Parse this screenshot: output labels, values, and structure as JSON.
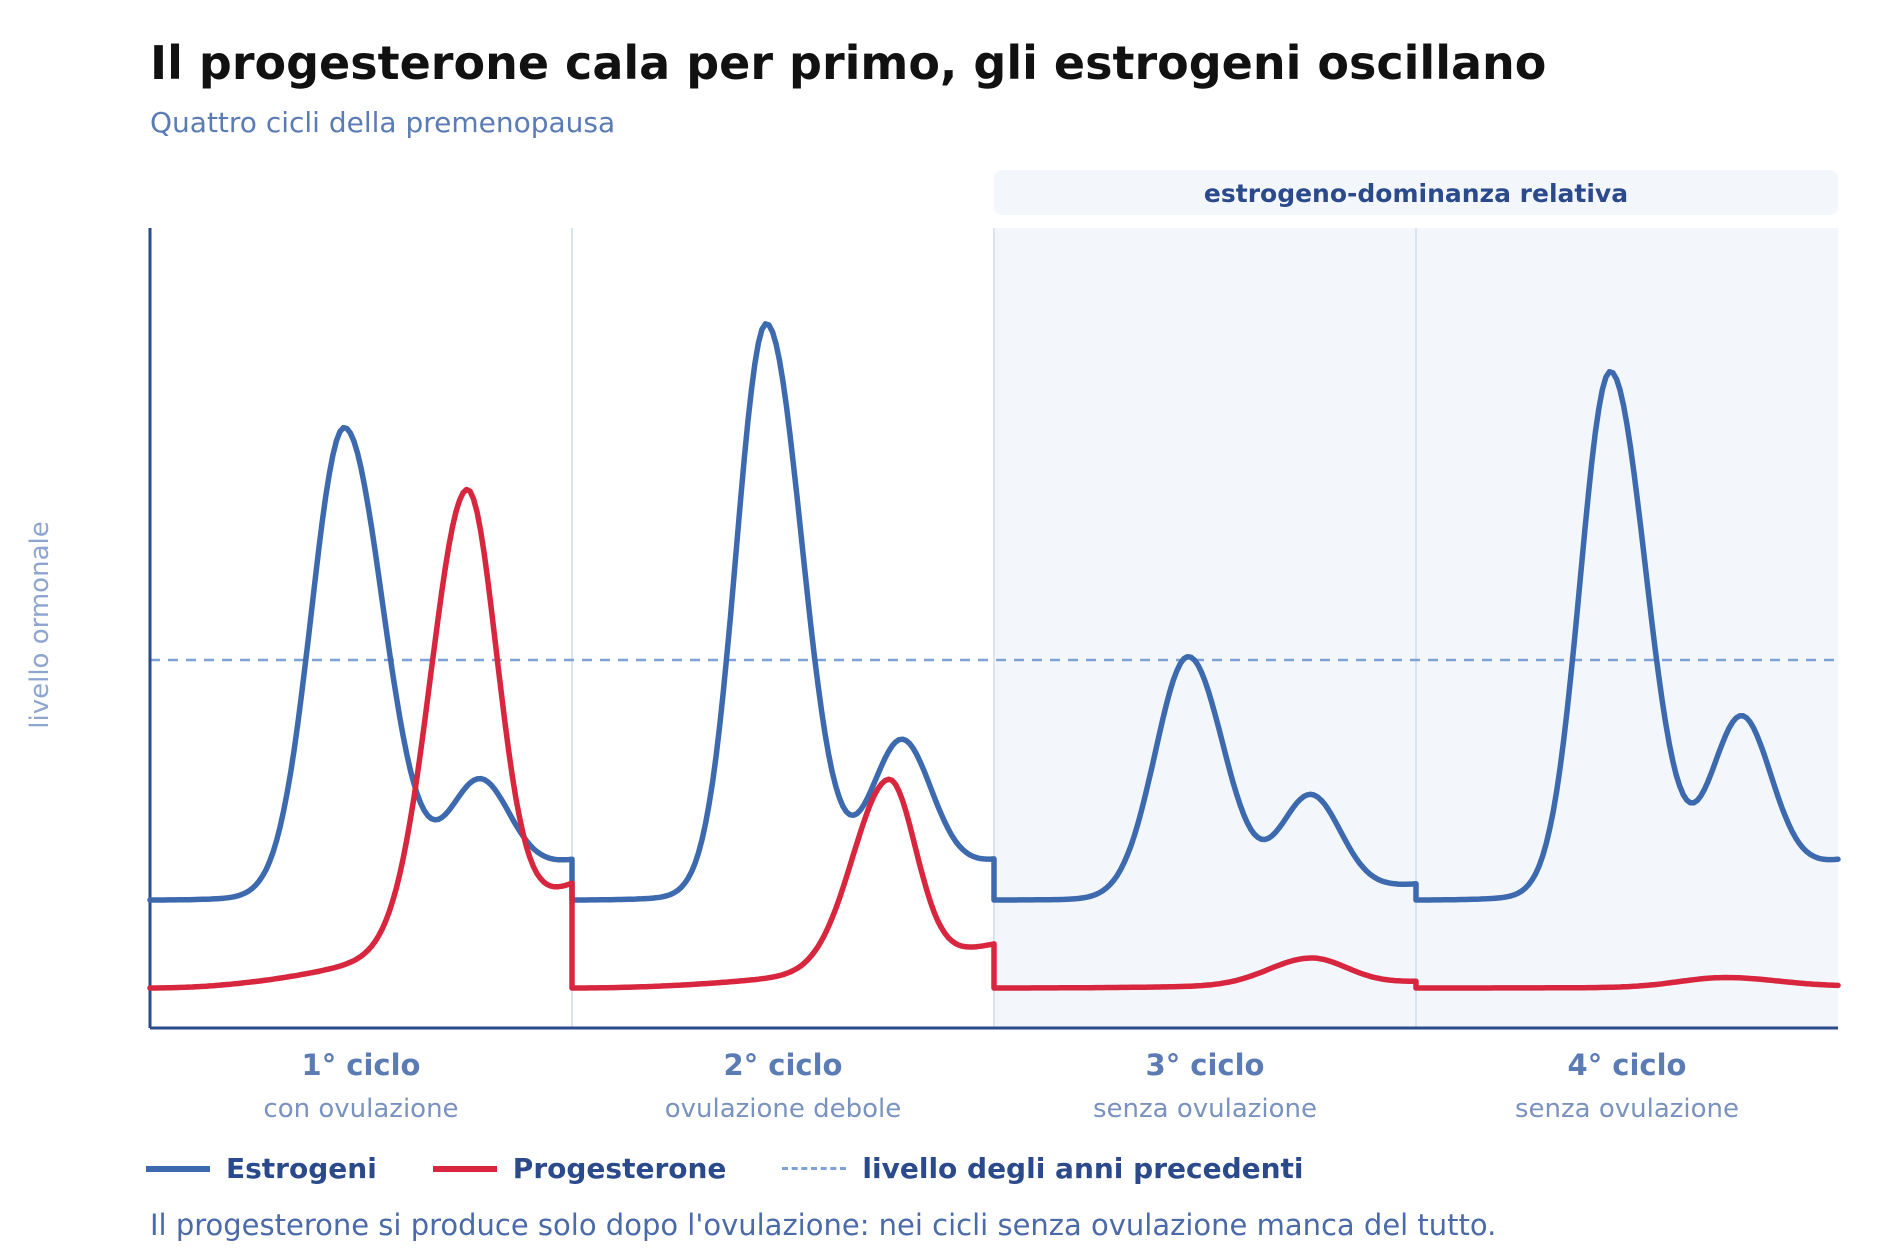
{
  "title": "Il progesterone cala per primo, gli estrogeni oscillano",
  "subtitle": "Quattro cicli della premenopausa",
  "note": "Il progesterone si produce solo dopo l'ovulazione: nei cicli senza ovulazione manca del tutto.",
  "colors": {
    "estrogen": "#3d6aaf",
    "progesterone": "#d7263d",
    "reference": "#7fa2d6",
    "band": "#f3f6fb",
    "axis": "#2b4a8b"
  },
  "legend": [
    {
      "key": "estrogen",
      "label": "Estrogeni",
      "style": "solid"
    },
    {
      "key": "progesterone",
      "label": "Progesterone",
      "style": "solid"
    },
    {
      "key": "reference",
      "label": "livello degli anni precedenti",
      "style": "dashed"
    }
  ],
  "chart_data": {
    "type": "line",
    "title": "Il progesterone cala per primo, gli estrogeni oscillano",
    "subtitle": "Quattro cicli della premenopausa",
    "ylabel": "livello ormonale",
    "xlabel": "",
    "xlim": [
      0,
      4
    ],
    "ylim": [
      0,
      100
    ],
    "grid": false,
    "legend_position": "bottom-left",
    "cycles": [
      {
        "title": "1° ciclo",
        "subtitle": "con ovulazione"
      },
      {
        "title": "2° ciclo",
        "subtitle": "ovulazione debole"
      },
      {
        "title": "3° ciclo",
        "subtitle": "senza ovulazione"
      },
      {
        "title": "4° ciclo",
        "subtitle": "senza ovulazione"
      }
    ],
    "reference_level": 46,
    "band": {
      "label": "estrogeno-dominanza relativa",
      "from": 2,
      "to": 4
    },
    "series": [
      {
        "name": "Estrogeni",
        "key": "estrogen",
        "segments": [
          {
            "cycle": 0,
            "base": 16,
            "peak": 74,
            "peak_at": 0.46,
            "rise_w": 0.11,
            "fall_w": 0.13,
            "shoulder": 12,
            "shoulder_at": 0.78,
            "end": 21
          },
          {
            "cycle": 1,
            "base": 16,
            "peak": 87,
            "peak_at": 0.46,
            "rise_w": 0.1,
            "fall_w": 0.12,
            "shoulder": 17,
            "shoulder_at": 0.78,
            "end": 21
          },
          {
            "cycle": 2,
            "base": 16,
            "peak": 46,
            "peak_at": 0.46,
            "rise_w": 0.11,
            "fall_w": 0.12,
            "shoulder": 12,
            "shoulder_at": 0.75,
            "end": 18
          },
          {
            "cycle": 3,
            "base": 16,
            "peak": 81,
            "peak_at": 0.46,
            "rise_w": 0.1,
            "fall_w": 0.12,
            "shoulder": 20,
            "shoulder_at": 0.77,
            "end": 21
          }
        ]
      },
      {
        "name": "Progesterone",
        "key": "progesterone",
        "segments": [
          {
            "cycle": 0,
            "base": 5,
            "peak": 60,
            "peak_at": 0.75,
            "rise_w": 0.12,
            "fall_w": 0.1,
            "end": 18
          },
          {
            "cycle": 1,
            "base": 5,
            "peak": 28,
            "peak_at": 0.75,
            "rise_w": 0.12,
            "fall_w": 0.09,
            "end": 10.5
          },
          {
            "cycle": 2,
            "base": 5,
            "peak": 8.3,
            "peak_at": 0.75,
            "rise_w": 0.14,
            "fall_w": 0.12,
            "end": 5.8
          },
          {
            "cycle": 3,
            "base": 5,
            "peak": 6.2,
            "peak_at": 0.73,
            "rise_w": 0.15,
            "fall_w": 0.18,
            "end": 5.2
          }
        ]
      }
    ]
  }
}
